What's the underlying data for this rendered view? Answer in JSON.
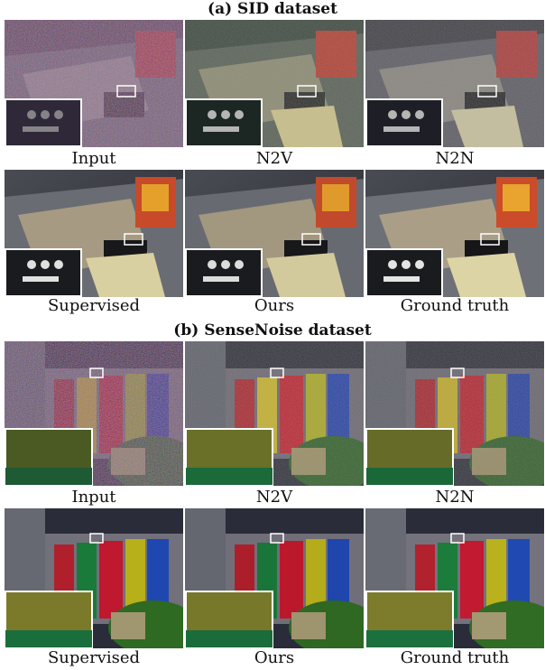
{
  "section_a": {
    "title": "(a) SID dataset",
    "captions": [
      "Input",
      "N2V",
      "N2N",
      "Supervised",
      "Ours",
      "Ground truth"
    ]
  },
  "section_b": {
    "title": "(b) SenseNoise dataset",
    "captions": [
      "Input",
      "N2V",
      "N2N",
      "Supervised",
      "Ours",
      "Ground truth"
    ]
  }
}
